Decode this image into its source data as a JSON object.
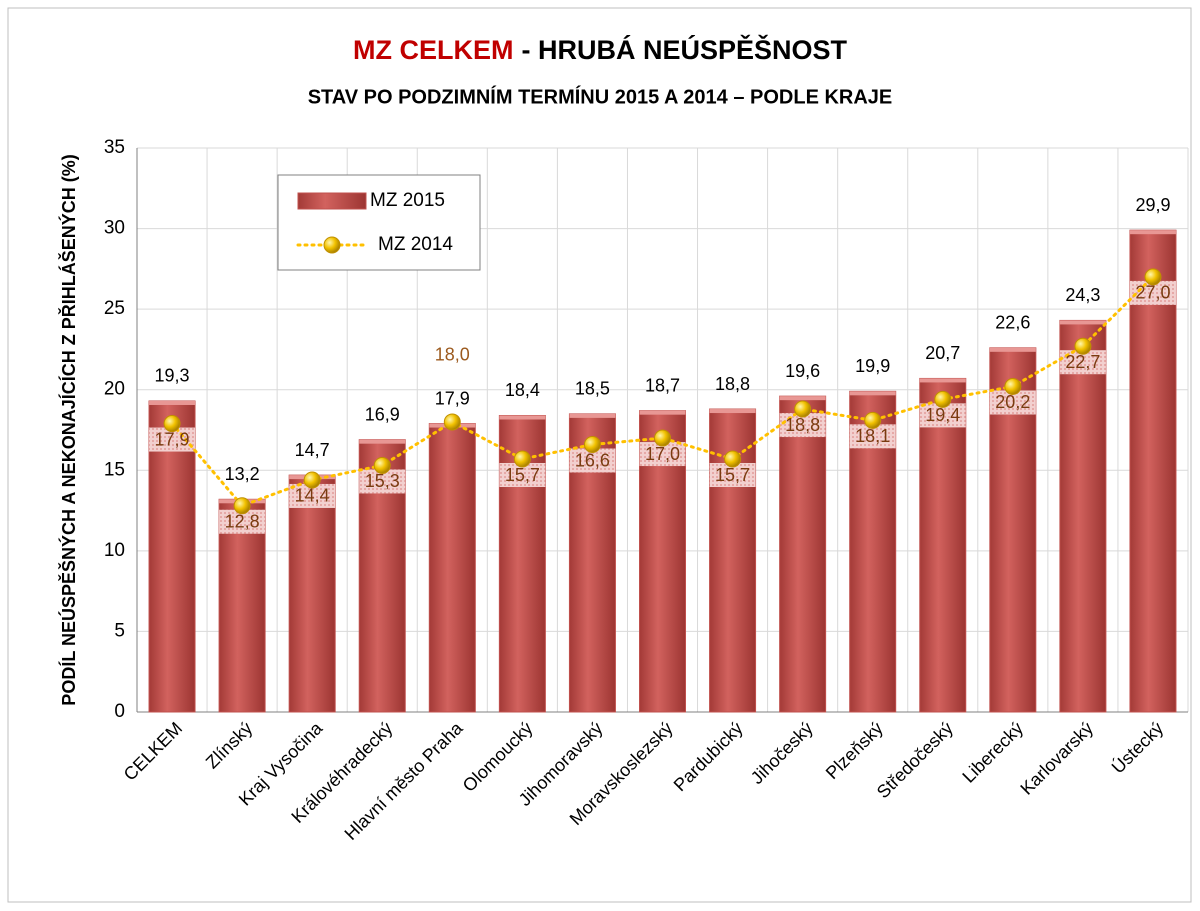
{
  "chart_data": {
    "type": "bar_line",
    "title_highlight": "MZ CELKEM",
    "title": "- HRUBÁ NEÚSPĚŠNOST",
    "subtitle": "STAV PO PODZIMNÍM TERMÍNU 2015 A 2014 – PODLE KRAJE",
    "y_label": "PODÍL NEÚSPĚŠNÝCH A NEKONAJÍCÍCH Z PŘIHLÁŠENÝCH (%)",
    "categories": [
      "CELKEM",
      "Zlínský",
      "Kraj Vysočina",
      "Královéhradecký",
      "Hlavní město Praha",
      "Olomoucký",
      "Jihomoravský",
      "Moravskoslezský",
      "Pardubický",
      "Jihočeský",
      "Plzeňský",
      "Středočeský",
      "Liberecký",
      "Karlovarský",
      "Ústecký"
    ],
    "series": [
      {
        "name": "MZ 2015",
        "type": "bar",
        "color": "#c0504d",
        "values": [
          19.3,
          13.2,
          14.7,
          16.9,
          17.9,
          18.4,
          18.5,
          18.7,
          18.8,
          19.6,
          19.9,
          20.7,
          22.6,
          24.3,
          29.9
        ],
        "value_labels": [
          "19,3",
          "13,2",
          "14,7",
          "16,9",
          "17,9",
          "18,4",
          "18,5",
          "18,7",
          "18,8",
          "19,6",
          "19,9",
          "20,7",
          "22,6",
          "24,3",
          "29,9"
        ]
      },
      {
        "name": "MZ 2014",
        "type": "line",
        "color": "#ffc000",
        "values": [
          17.9,
          12.8,
          14.4,
          15.3,
          18.0,
          15.7,
          16.6,
          17.0,
          15.7,
          18.8,
          18.1,
          19.4,
          20.2,
          22.7,
          27.0
        ],
        "value_labels": [
          "17,9",
          "12,8",
          "14,4",
          "15,3",
          "18,0",
          "15,7",
          "16,6",
          "17,0",
          "15,7",
          "18,8",
          "18,1",
          "19,4",
          "20,2",
          "22,7",
          "27,0"
        ]
      }
    ],
    "ylim": [
      0,
      35
    ],
    "yticks": [
      0,
      5,
      10,
      15,
      20,
      25,
      30,
      35
    ],
    "grid": true,
    "legend": "top-left"
  }
}
